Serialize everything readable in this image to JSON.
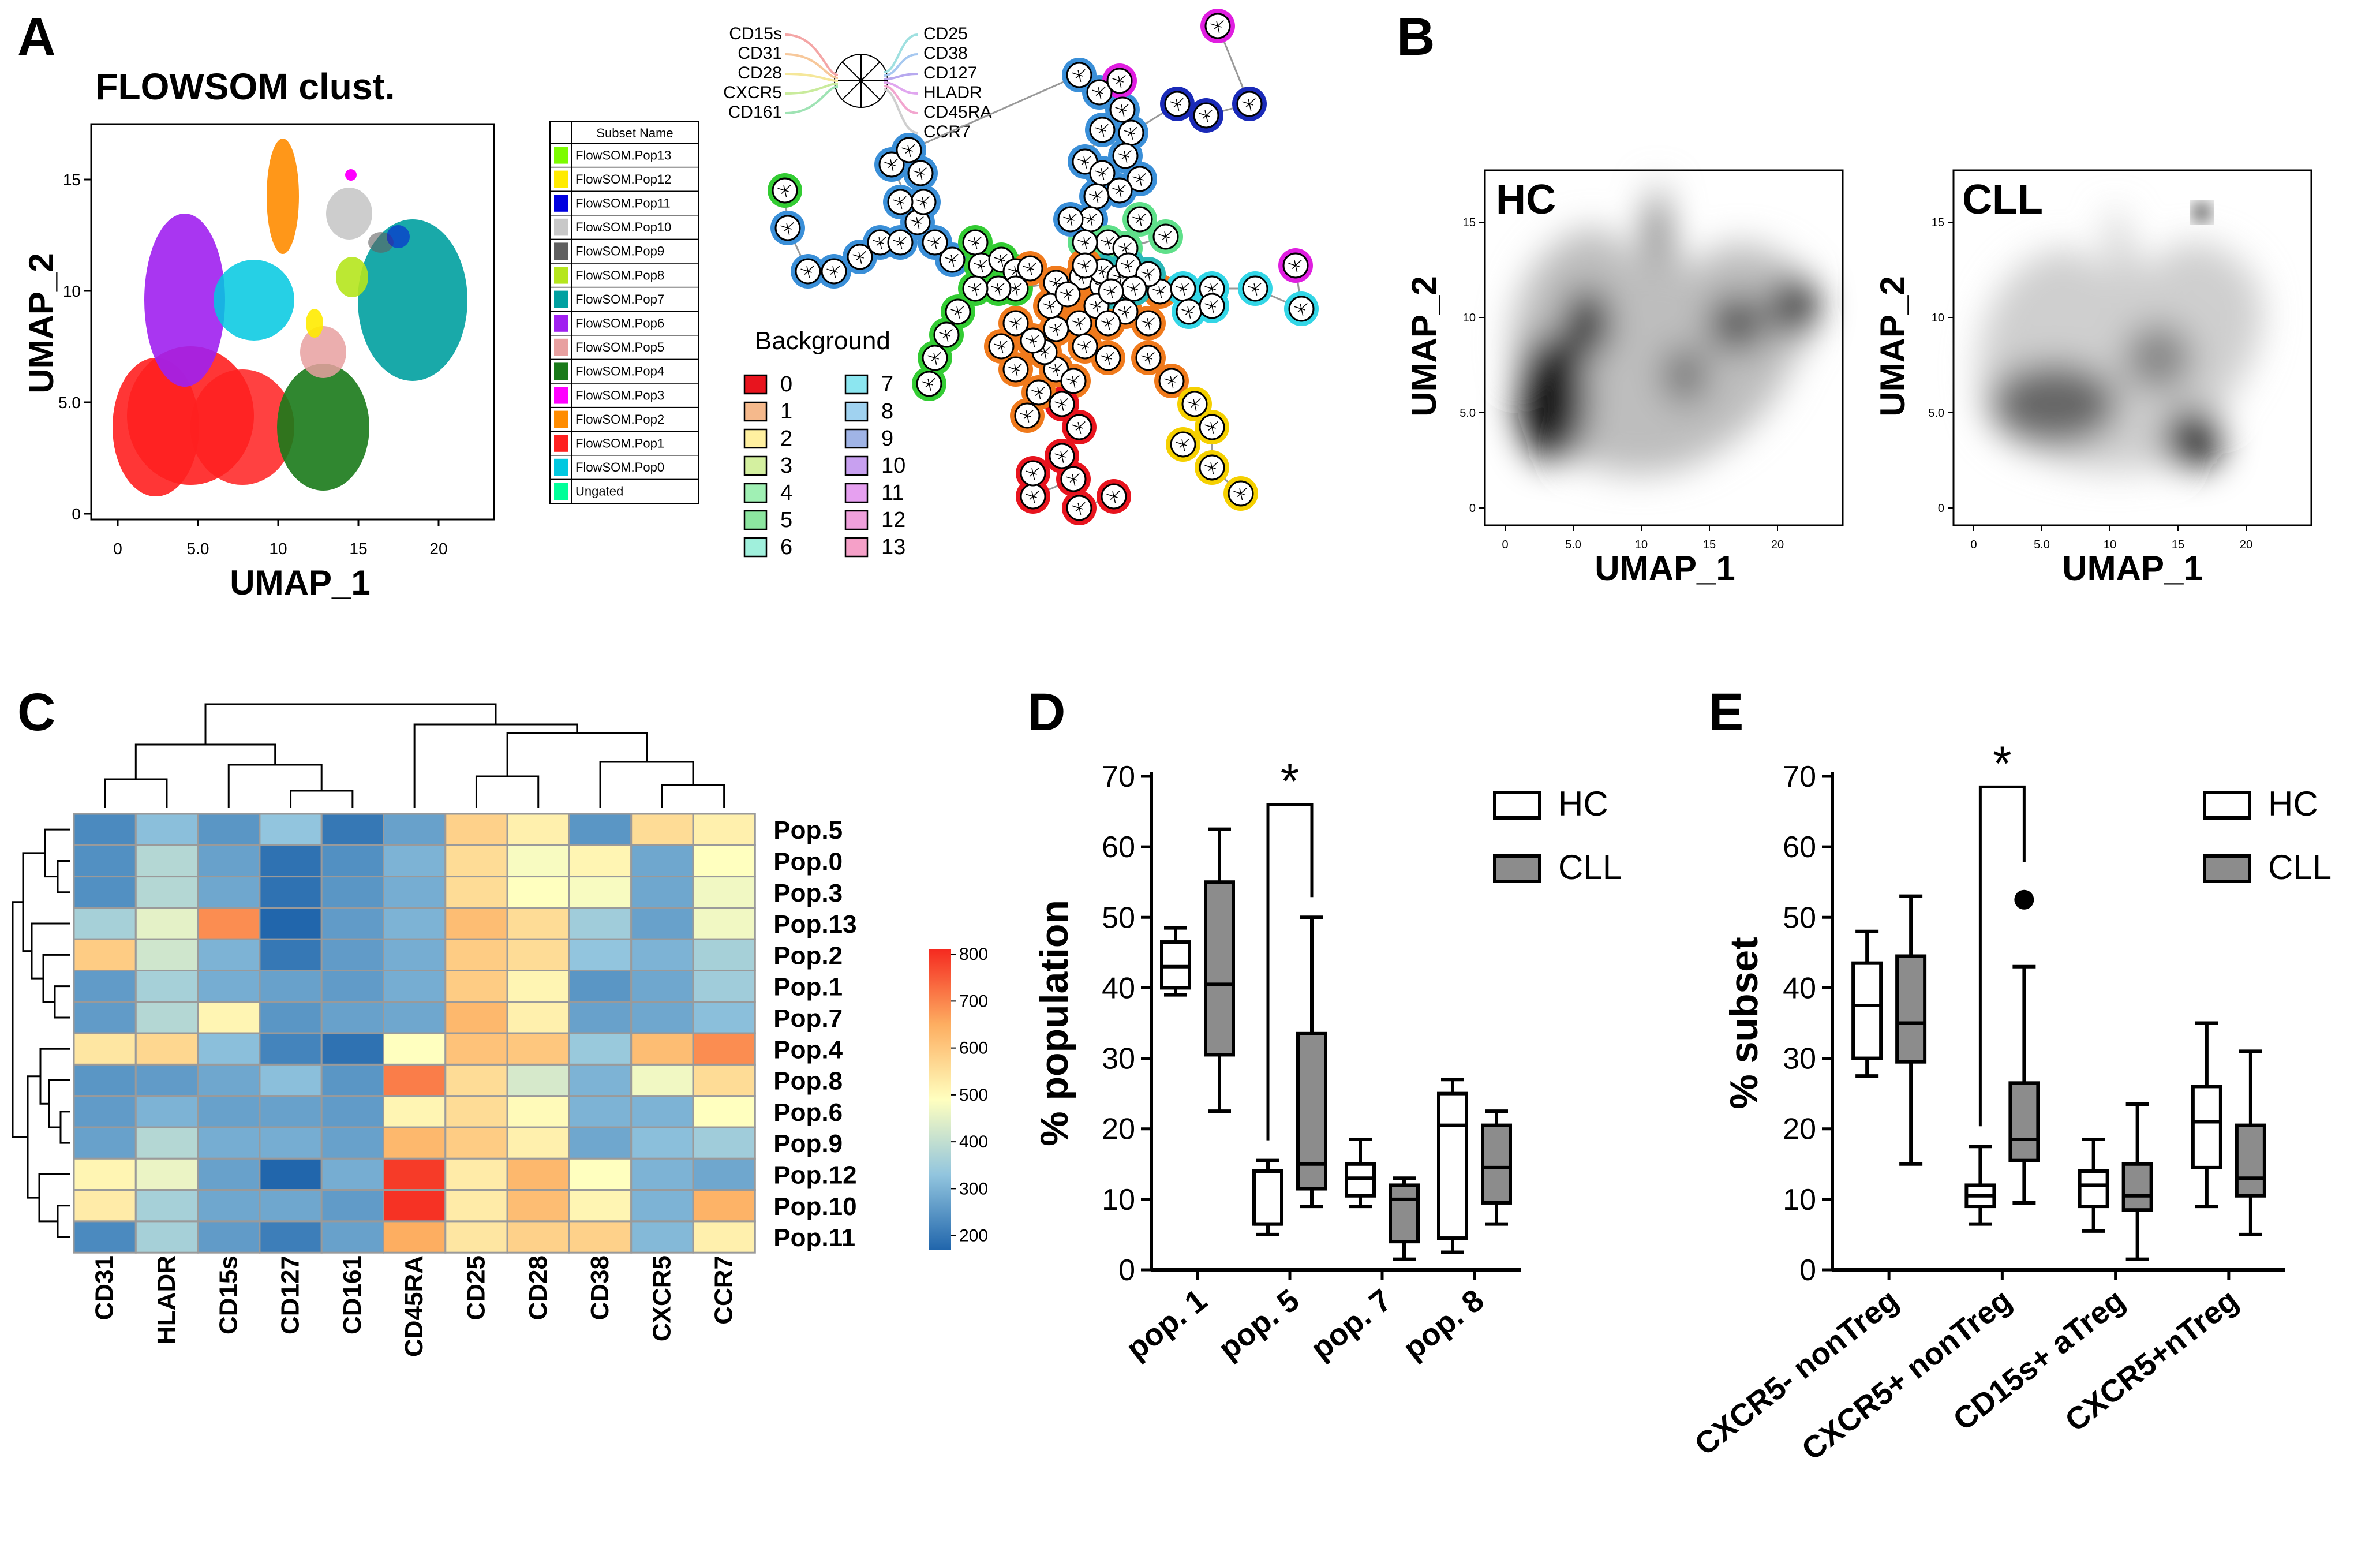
{
  "panels": {
    "A": "A",
    "B": "B",
    "C": "C",
    "D": "D",
    "E": "E"
  },
  "colors": {
    "hc_fill": "#ffffff",
    "cll_fill": "#8c8c8c",
    "heat_low": "#2166ac",
    "heat_mid": "#ffffbf",
    "heat_high": "#f52a20"
  },
  "panel_a": {
    "title": "FLOWSOM clust.",
    "xlabel": "UMAP_1",
    "ylabel": "UMAP_2",
    "xticks": [
      "0",
      "5.0",
      "10",
      "15",
      "20"
    ],
    "yticks": [
      "0",
      "5.0",
      "10",
      "15"
    ],
    "legend_header": "Subset Name",
    "legend": [
      {
        "label": "FlowSOM.Pop13",
        "color": "#7cfc00"
      },
      {
        "label": "FlowSOM.Pop12",
        "color": "#ffeb00"
      },
      {
        "label": "FlowSOM.Pop11",
        "color": "#0000e0"
      },
      {
        "label": "FlowSOM.Pop10",
        "color": "#c8c8c8"
      },
      {
        "label": "FlowSOM.Pop9",
        "color": "#606060"
      },
      {
        "label": "FlowSOM.Pop8",
        "color": "#b5e61d"
      },
      {
        "label": "FlowSOM.Pop7",
        "color": "#00a0a0"
      },
      {
        "label": "FlowSOM.Pop6",
        "color": "#a020f0"
      },
      {
        "label": "FlowSOM.Pop5",
        "color": "#e8a0a0"
      },
      {
        "label": "FlowSOM.Pop4",
        "color": "#1a7a1a"
      },
      {
        "label": "FlowSOM.Pop3",
        "color": "#ff00ff"
      },
      {
        "label": "FlowSOM.Pop2",
        "color": "#ff8c00"
      },
      {
        "label": "FlowSOM.Pop1",
        "color": "#ff2020"
      },
      {
        "label": "FlowSOM.Pop0",
        "color": "#00c8e0"
      },
      {
        "label": "Ungated",
        "color": "#00ff99"
      }
    ],
    "star_markers_left": [
      "CD15s",
      "CD31",
      "CD28",
      "CXCR5",
      "CD161"
    ],
    "star_markers_right": [
      "CD25",
      "CD38",
      "CD127",
      "HLADR",
      "CD45RA",
      "CCR7"
    ],
    "background_title": "Background",
    "background": [
      {
        "label": "0",
        "color": "#e8141e"
      },
      {
        "label": "1",
        "color": "#f5b98c"
      },
      {
        "label": "2",
        "color": "#fff0a0"
      },
      {
        "label": "3",
        "color": "#d4f0a0"
      },
      {
        "label": "4",
        "color": "#a0f0b4"
      },
      {
        "label": "5",
        "color": "#8ce6a0"
      },
      {
        "label": "6",
        "color": "#a0f0dc"
      },
      {
        "label": "7",
        "color": "#8ce6f0"
      },
      {
        "label": "8",
        "color": "#a0d2f0"
      },
      {
        "label": "9",
        "color": "#a0b4e6"
      },
      {
        "label": "10",
        "color": "#c8a0f0"
      },
      {
        "label": "11",
        "color": "#e6a0f0"
      },
      {
        "label": "12",
        "color": "#f0a0dc"
      },
      {
        "label": "13",
        "color": "#f5a0c8"
      }
    ]
  },
  "panel_b": {
    "plots": [
      {
        "label": "HC"
      },
      {
        "label": "CLL"
      }
    ],
    "xlabel": "UMAP_1",
    "ylabel": "UMAP_2",
    "xticks": [
      "0",
      "5.0",
      "10",
      "15",
      "20"
    ],
    "yticks": [
      "0",
      "5.0",
      "10",
      "15"
    ]
  },
  "chart_data": [
    {
      "type": "heatmap",
      "panel": "C",
      "columns": [
        "CD31",
        "HLADR",
        "CD15s",
        "CD127",
        "CD161",
        "CD45RA",
        "CD25",
        "CD28",
        "CD38",
        "CXCR5",
        "CCR7"
      ],
      "rows": [
        "Pop.5",
        "Pop.0",
        "Pop.3",
        "Pop.13",
        "Pop.2",
        "Pop.1",
        "Pop.7",
        "Pop.4",
        "Pop.8",
        "Pop.6",
        "Pop.9",
        "Pop.12",
        "Pop.10",
        "Pop.11"
      ],
      "values": [
        [
          230,
          320,
          250,
          330,
          200,
          270,
          580,
          520,
          250,
          560,
          520
        ],
        [
          240,
          380,
          270,
          190,
          240,
          300,
          560,
          480,
          510,
          280,
          490
        ],
        [
          240,
          380,
          280,
          190,
          250,
          290,
          560,
          490,
          480,
          280,
          470
        ],
        [
          360,
          450,
          690,
          170,
          260,
          300,
          620,
          560,
          350,
          270,
          470
        ],
        [
          590,
          420,
          300,
          200,
          260,
          290,
          590,
          560,
          330,
          300,
          360
        ],
        [
          260,
          360,
          290,
          270,
          260,
          290,
          590,
          510,
          250,
          280,
          350
        ],
        [
          260,
          380,
          510,
          250,
          270,
          280,
          630,
          520,
          270,
          280,
          320
        ],
        [
          540,
          570,
          320,
          220,
          190,
          490,
          610,
          600,
          340,
          620,
          690
        ],
        [
          250,
          260,
          280,
          320,
          250,
          710,
          560,
          430,
          300,
          470,
          560
        ],
        [
          260,
          300,
          270,
          270,
          260,
          510,
          560,
          500,
          300,
          300,
          490
        ],
        [
          270,
          380,
          290,
          290,
          270,
          630,
          590,
          520,
          280,
          320,
          350
        ],
        [
          510,
          460,
          270,
          160,
          290,
          790,
          530,
          630,
          490,
          300,
          280
        ],
        [
          530,
          360,
          280,
          280,
          260,
          800,
          530,
          620,
          510,
          300,
          640
        ],
        [
          230,
          360,
          260,
          210,
          270,
          650,
          540,
          580,
          580,
          310,
          520
        ]
      ],
      "colorbar_ticks": [
        "800",
        "700",
        "600",
        "500",
        "400",
        "300",
        "200"
      ],
      "colorbar_range": [
        170,
        810
      ]
    },
    {
      "type": "box",
      "panel": "D",
      "ylabel": "% population",
      "yticks": [
        "70",
        "60",
        "50",
        "40",
        "30",
        "20",
        "10",
        "0"
      ],
      "ylim": [
        0,
        70
      ],
      "categories": [
        "pop. 1",
        "pop. 5",
        "pop. 7",
        "pop. 8"
      ],
      "series": [
        {
          "name": "HC",
          "boxes": [
            {
              "min": 39,
              "q1": 40,
              "median": 43,
              "q3": 46.5,
              "max": 48.5
            },
            {
              "min": 5,
              "q1": 6.5,
              "median": 6.5,
              "q3": 14,
              "max": 15.5
            },
            {
              "min": 9,
              "q1": 10.5,
              "median": 13,
              "q3": 15,
              "max": 18.5
            },
            {
              "min": 2.5,
              "q1": 4.5,
              "median": 20.5,
              "q3": 25,
              "max": 27
            }
          ]
        },
        {
          "name": "CLL",
          "boxes": [
            {
              "min": 22.5,
              "q1": 30.5,
              "median": 40.5,
              "q3": 55,
              "max": 62.5
            },
            {
              "min": 9,
              "q1": 11.5,
              "median": 15,
              "q3": 33.5,
              "max": 50
            },
            {
              "min": 1.5,
              "q1": 4,
              "median": 10,
              "q3": 12,
              "max": 13
            },
            {
              "min": 6.5,
              "q1": 9.5,
              "median": 14.5,
              "q3": 20.5,
              "max": 22.5
            }
          ]
        }
      ],
      "significance": [
        {
          "category": "pop. 5",
          "label": "*"
        }
      ]
    },
    {
      "type": "box",
      "panel": "E",
      "ylabel": "% subset",
      "yticks": [
        "70",
        "60",
        "50",
        "40",
        "30",
        "20",
        "10",
        "0"
      ],
      "ylim": [
        0,
        70
      ],
      "categories": [
        "CXCR5- nonTreg",
        "CXCR5+ nonTreg",
        "CD15s+ aTreg",
        "CXCR5+nTreg"
      ],
      "series": [
        {
          "name": "HC",
          "boxes": [
            {
              "min": 27.5,
              "q1": 30,
              "median": 37.5,
              "q3": 43.5,
              "max": 48
            },
            {
              "min": 6.5,
              "q1": 9,
              "median": 10.5,
              "q3": 12,
              "max": 17.5
            },
            {
              "min": 5.5,
              "q1": 9,
              "median": 12,
              "q3": 14,
              "max": 18.5
            },
            {
              "min": 9,
              "q1": 14.5,
              "median": 21,
              "q3": 26,
              "max": 35
            }
          ]
        },
        {
          "name": "CLL",
          "boxes": [
            {
              "min": 15,
              "q1": 29.5,
              "median": 35,
              "q3": 44.5,
              "max": 53
            },
            {
              "min": 9.5,
              "q1": 15.5,
              "median": 18.5,
              "q3": 26.5,
              "max": 43,
              "outliers": [
                52.5
              ]
            },
            {
              "min": 1.5,
              "q1": 8.5,
              "median": 10.5,
              "q3": 15,
              "max": 23.5
            },
            {
              "min": 5,
              "q1": 10.5,
              "median": 13,
              "q3": 20.5,
              "max": 31
            }
          ]
        }
      ],
      "significance": [
        {
          "category": "CXCR5+ nonTreg",
          "label": "*"
        }
      ]
    }
  ]
}
